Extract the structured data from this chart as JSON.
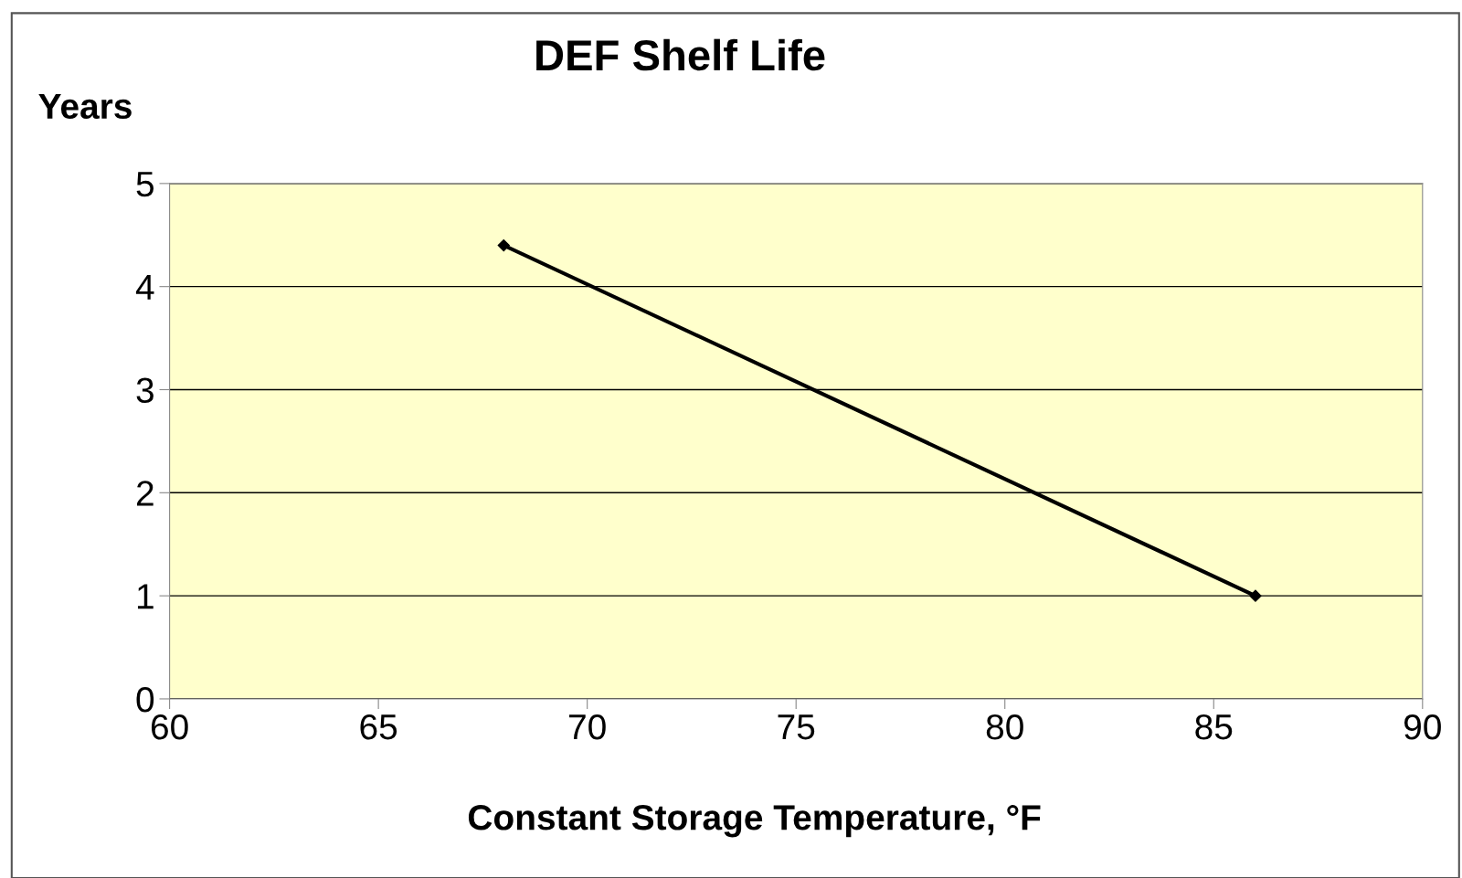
{
  "chart_data": {
    "type": "line",
    "title": "DEF Shelf Life",
    "xlabel": "Constant Storage Temperature, °F",
    "ylabel": "Years",
    "x": [
      68,
      86
    ],
    "series": [
      {
        "color": "#000000",
        "values": [
          4.4,
          1.0
        ]
      }
    ],
    "xlim": [
      60,
      90
    ],
    "xticks": [
      60,
      65,
      70,
      75,
      80,
      85,
      90
    ],
    "ylim": [
      0,
      5
    ],
    "yticks": [
      0,
      1,
      2,
      3,
      4,
      5
    ],
    "grid": "y",
    "marker": "diamond",
    "line_style": "solid",
    "legend": false
  }
}
